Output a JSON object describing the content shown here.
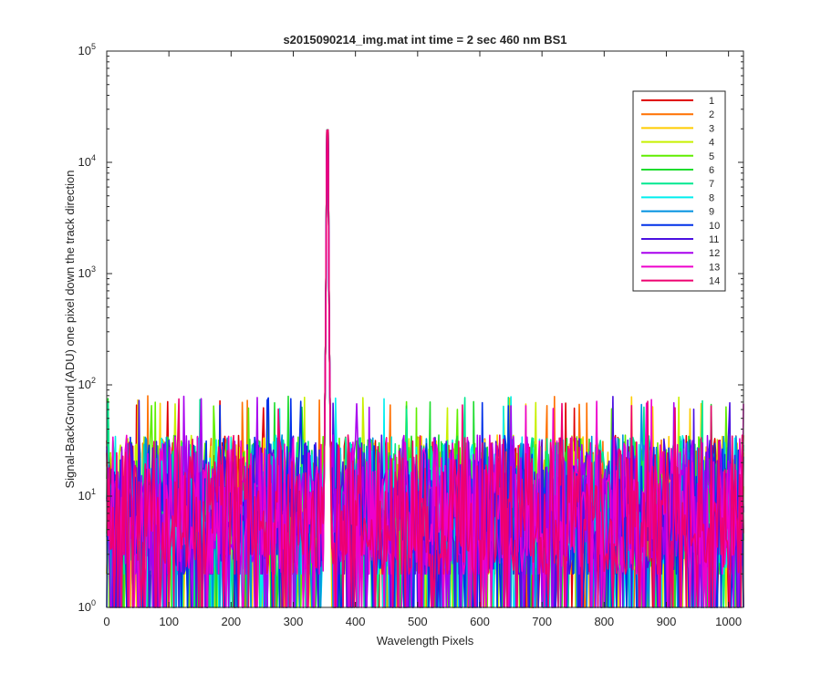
{
  "chart_data": {
    "type": "line",
    "title": "s2015090214_img.mat int time = 2 sec  460 nm BS1",
    "xlabel": "Wavelength Pixels",
    "ylabel": "Signal-BackGround (ADU) one pixel down the track direction",
    "x_scale": "linear",
    "y_scale": "log",
    "xlim": [
      0,
      1024
    ],
    "ylim": [
      1,
      100000
    ],
    "x_ticks": [
      0,
      100,
      200,
      300,
      400,
      500,
      600,
      700,
      800,
      900,
      1000
    ],
    "x_tick_labels": [
      "0",
      "100",
      "200",
      "300",
      "400",
      "500",
      "600",
      "700",
      "800",
      "900",
      "1000"
    ],
    "y_ticks": [
      1,
      10,
      100,
      1000,
      10000,
      100000
    ],
    "y_tick_labels": [
      {
        "base": "10",
        "exp": "0"
      },
      {
        "base": "10",
        "exp": "1"
      },
      {
        "base": "10",
        "exp": "2"
      },
      {
        "base": "10",
        "exp": "3"
      },
      {
        "base": "10",
        "exp": "4"
      },
      {
        "base": "10",
        "exp": "5"
      }
    ],
    "grid": false,
    "legend_position": "top-right",
    "peak": {
      "x": 355,
      "y": 46000
    },
    "noise_floor_range": [
      1,
      80
    ],
    "series": [
      {
        "name": "1",
        "color": "#e00000"
      },
      {
        "name": "2",
        "color": "#ff7000"
      },
      {
        "name": "3",
        "color": "#ffcc00"
      },
      {
        "name": "4",
        "color": "#c8f000"
      },
      {
        "name": "5",
        "color": "#60ee00"
      },
      {
        "name": "6",
        "color": "#1edc2e"
      },
      {
        "name": "7",
        "color": "#00e890"
      },
      {
        "name": "8",
        "color": "#00eeee"
      },
      {
        "name": "9",
        "color": "#0090e0"
      },
      {
        "name": "10",
        "color": "#0030e8"
      },
      {
        "name": "11",
        "color": "#4a10e0"
      },
      {
        "name": "12",
        "color": "#a800ee"
      },
      {
        "name": "13",
        "color": "#ee00cc"
      },
      {
        "name": "14",
        "color": "#ee0070"
      }
    ]
  }
}
